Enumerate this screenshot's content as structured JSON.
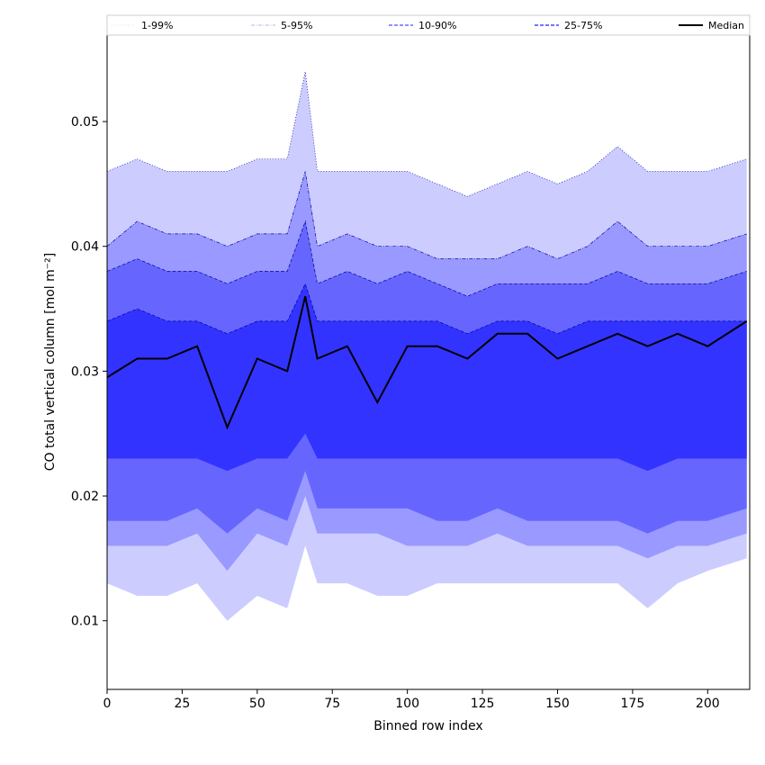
{
  "chart_data": {
    "type": "area",
    "xlabel": "Binned row index",
    "ylabel": "CO total vertical column [mol m⁻²]",
    "xlim": [
      0,
      214
    ],
    "ylim": [
      0.0045,
      0.057
    ],
    "x_ticks": [
      0,
      25,
      50,
      75,
      100,
      125,
      150,
      175,
      200
    ],
    "y_ticks": [
      0.01,
      0.02,
      0.03,
      0.04,
      0.05
    ],
    "x_tick_labels": [
      "0",
      "25",
      "50",
      "75",
      "100",
      "125",
      "150",
      "175",
      "200"
    ],
    "y_tick_labels": [
      "0.01",
      "0.02",
      "0.03",
      "0.04",
      "0.05"
    ],
    "grid": false,
    "legend_position": "top",
    "legend": [
      {
        "label": "1-99%",
        "style": "dotted"
      },
      {
        "label": "5-95%",
        "style": "dashdot"
      },
      {
        "label": "10-90%",
        "style": "dashed"
      },
      {
        "label": "25-75%",
        "style": "dashed"
      },
      {
        "label": "Median",
        "style": "solid"
      }
    ],
    "x_sample": [
      0,
      10,
      20,
      30,
      40,
      50,
      60,
      66,
      70,
      80,
      90,
      100,
      110,
      120,
      130,
      140,
      150,
      160,
      170,
      180,
      190,
      200,
      213
    ],
    "series": [
      {
        "name": "1-99%",
        "color": "#ccccff",
        "lower": [
          0.013,
          0.012,
          0.012,
          0.013,
          0.01,
          0.012,
          0.011,
          0.016,
          0.013,
          0.013,
          0.012,
          0.012,
          0.013,
          0.013,
          0.013,
          0.013,
          0.013,
          0.013,
          0.013,
          0.011,
          0.013,
          0.014,
          0.015
        ],
        "upper": [
          0.046,
          0.047,
          0.046,
          0.046,
          0.046,
          0.047,
          0.047,
          0.054,
          0.046,
          0.046,
          0.046,
          0.046,
          0.045,
          0.044,
          0.045,
          0.046,
          0.045,
          0.046,
          0.048,
          0.046,
          0.046,
          0.046,
          0.047
        ]
      },
      {
        "name": "5-95%",
        "color": "#9999ff",
        "lower": [
          0.016,
          0.016,
          0.016,
          0.017,
          0.014,
          0.017,
          0.016,
          0.02,
          0.017,
          0.017,
          0.017,
          0.016,
          0.016,
          0.016,
          0.017,
          0.016,
          0.016,
          0.016,
          0.016,
          0.015,
          0.016,
          0.016,
          0.017
        ],
        "upper": [
          0.04,
          0.042,
          0.041,
          0.041,
          0.04,
          0.041,
          0.041,
          0.046,
          0.04,
          0.041,
          0.04,
          0.04,
          0.039,
          0.039,
          0.039,
          0.04,
          0.039,
          0.04,
          0.042,
          0.04,
          0.04,
          0.04,
          0.041
        ]
      },
      {
        "name": "10-90%",
        "color": "#6666ff",
        "lower": [
          0.018,
          0.018,
          0.018,
          0.019,
          0.017,
          0.019,
          0.018,
          0.022,
          0.019,
          0.019,
          0.019,
          0.019,
          0.018,
          0.018,
          0.019,
          0.018,
          0.018,
          0.018,
          0.018,
          0.017,
          0.018,
          0.018,
          0.019
        ],
        "upper": [
          0.038,
          0.039,
          0.038,
          0.038,
          0.037,
          0.038,
          0.038,
          0.042,
          0.037,
          0.038,
          0.037,
          0.038,
          0.037,
          0.036,
          0.037,
          0.037,
          0.037,
          0.037,
          0.038,
          0.037,
          0.037,
          0.037,
          0.038
        ]
      },
      {
        "name": "25-75%",
        "color": "#3333ff",
        "lower": [
          0.023,
          0.023,
          0.023,
          0.023,
          0.022,
          0.023,
          0.023,
          0.025,
          0.023,
          0.023,
          0.023,
          0.023,
          0.023,
          0.023,
          0.023,
          0.023,
          0.023,
          0.023,
          0.023,
          0.022,
          0.023,
          0.023,
          0.023
        ],
        "upper": [
          0.034,
          0.035,
          0.034,
          0.034,
          0.033,
          0.034,
          0.034,
          0.037,
          0.034,
          0.034,
          0.034,
          0.034,
          0.034,
          0.033,
          0.034,
          0.034,
          0.033,
          0.034,
          0.034,
          0.034,
          0.034,
          0.034,
          0.034
        ]
      },
      {
        "name": "Median",
        "color": "#000000",
        "values": [
          0.0295,
          0.031,
          0.031,
          0.032,
          0.0255,
          0.031,
          0.03,
          0.036,
          0.031,
          0.032,
          0.0275,
          0.032,
          0.032,
          0.031,
          0.033,
          0.033,
          0.031,
          0.032,
          0.033,
          0.032,
          0.033,
          0.032,
          0.034
        ]
      }
    ]
  }
}
